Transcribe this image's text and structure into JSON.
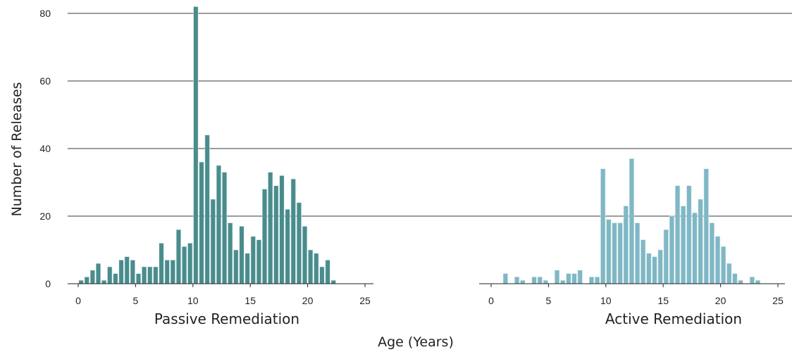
{
  "chart_data": {
    "type": "bar",
    "ylabel": "Number of Releases",
    "xlabel": "Age (Years)",
    "ylim": [
      0,
      80
    ],
    "yticks": [
      0,
      20,
      40,
      60,
      80
    ],
    "grid": true,
    "panels": [
      {
        "title": "Passive Remediation",
        "xlim": [
          0,
          25
        ],
        "xticks": [
          0,
          5,
          10,
          15,
          20,
          25
        ],
        "bin_width": 0.5,
        "color": "#4a8c8c",
        "x": [
          0.5,
          1.0,
          1.5,
          2.0,
          2.5,
          3.0,
          3.5,
          4.0,
          4.5,
          5.0,
          5.5,
          6.0,
          6.5,
          7.0,
          7.5,
          8.0,
          8.5,
          9.0,
          9.5,
          10.0,
          10.5,
          11.0,
          11.5,
          12.0,
          12.5,
          13.0,
          13.5,
          14.0,
          14.5,
          15.0,
          15.5,
          16.0,
          16.5,
          17.0,
          17.5,
          18.0,
          18.5,
          19.0,
          19.5,
          20.0,
          20.5,
          21.0,
          21.5,
          22.0,
          22.5
        ],
        "values": [
          1,
          2,
          4,
          6,
          1,
          5,
          3,
          7,
          8,
          7,
          3,
          5,
          5,
          5,
          12,
          7,
          7,
          16,
          11,
          12,
          82,
          36,
          44,
          25,
          35,
          33,
          18,
          10,
          17,
          9,
          14,
          13,
          28,
          33,
          29,
          32,
          22,
          31,
          24,
          17,
          10,
          9,
          5,
          7,
          1
        ]
      },
      {
        "title": "Active Remediation",
        "xlim": [
          0,
          25
        ],
        "xticks": [
          0,
          5,
          10,
          15,
          20,
          25
        ],
        "bin_width": 0.5,
        "color": "#7fb7c5",
        "x": [
          1.5,
          2.0,
          2.5,
          3.0,
          3.5,
          4.0,
          4.5,
          5.0,
          5.5,
          6.0,
          6.5,
          7.0,
          7.5,
          8.0,
          8.5,
          9.0,
          9.5,
          10.0,
          10.5,
          11.0,
          11.5,
          12.0,
          12.5,
          13.0,
          13.5,
          14.0,
          14.5,
          15.0,
          15.5,
          16.0,
          16.5,
          17.0,
          17.5,
          18.0,
          18.5,
          19.0,
          19.5,
          20.0,
          20.5,
          21.0,
          21.5,
          22.0,
          22.5,
          23.0,
          23.5
        ],
        "values": [
          3,
          0,
          2,
          1,
          0,
          2,
          2,
          1,
          0,
          4,
          1,
          3,
          3,
          4,
          0,
          2,
          2,
          34,
          19,
          18,
          18,
          23,
          37,
          18,
          13,
          9,
          8,
          10,
          16,
          20,
          29,
          23,
          29,
          21,
          25,
          34,
          18,
          14,
          11,
          6,
          3,
          1,
          0,
          2,
          1
        ]
      }
    ]
  },
  "colors": {
    "passive_bar": "#4a8c8c",
    "active_bar": "#7fb7c5",
    "grid": "#3a3a3a",
    "text": "#231f20"
  }
}
